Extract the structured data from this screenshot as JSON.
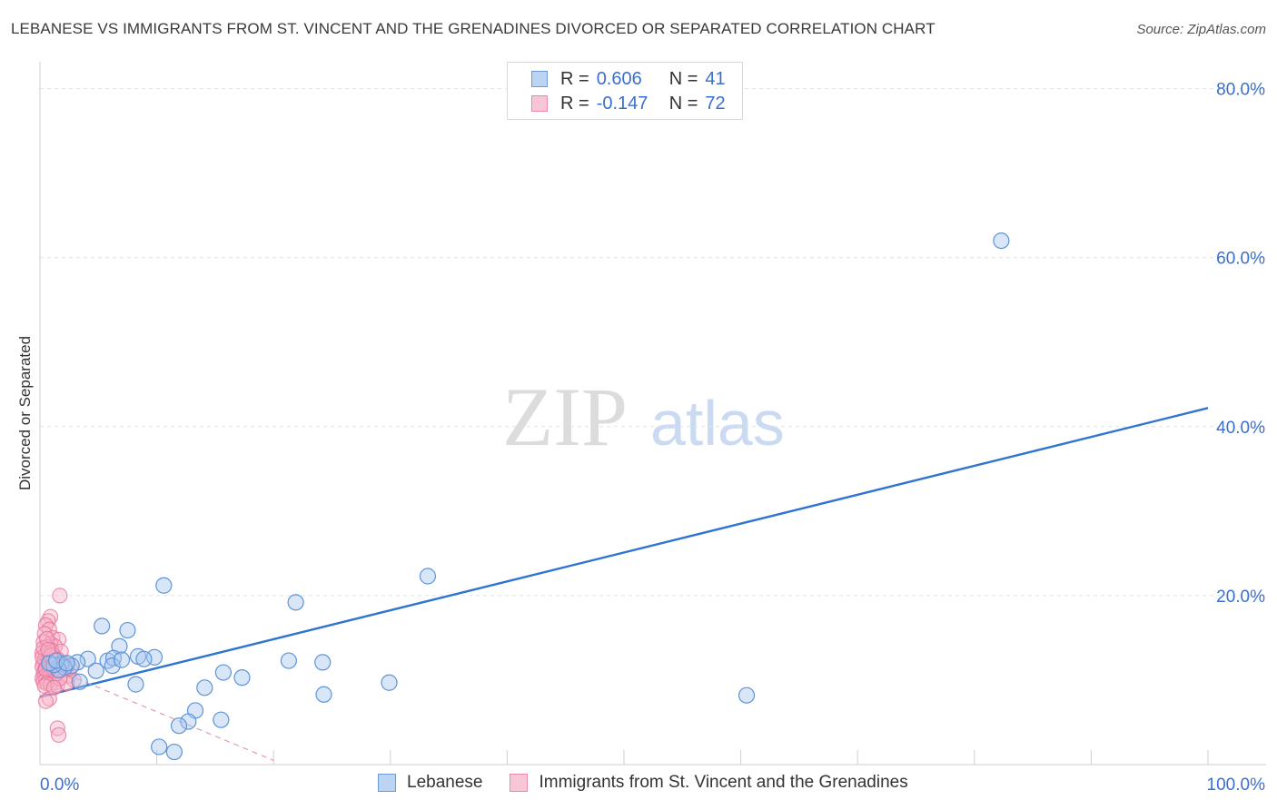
{
  "title": "LEBANESE VS IMMIGRANTS FROM ST. VINCENT AND THE GRENADINES DIVORCED OR SEPARATED CORRELATION CHART",
  "source": "Source: ZipAtlas.com",
  "watermark": {
    "zip": "ZIP",
    "atlas": "atlas"
  },
  "legend": {
    "rows": [
      {
        "r_label": "R = ",
        "r_value": "0.606",
        "n_label": "N = ",
        "n_value": "41"
      },
      {
        "r_label": "R = ",
        "r_value": "-0.147",
        "n_label": "N = ",
        "n_value": "72"
      }
    ]
  },
  "colors": {
    "blue_fill": "#a9c8ef",
    "blue_stroke": "#5f94d8",
    "blue_line": "#2f74d0",
    "pink_fill": "#f7b3c8",
    "pink_stroke": "#ea6f97",
    "pink_line": "#e19ab2",
    "grid": "#e2e2e2",
    "axis_text": "#3a6fd1"
  },
  "chart_data": {
    "type": "scatter",
    "title": "LEBANESE VS IMMIGRANTS FROM ST. VINCENT AND THE GRENADINES DIVORCED OR SEPARATED CORRELATION CHART",
    "xlabel": "",
    "ylabel": "Divorced or Separated",
    "xlim": [
      0,
      100
    ],
    "ylim": [
      0,
      82
    ],
    "x_tick_labels": [
      "0.0%",
      "100.0%"
    ],
    "y_ticks": [
      20,
      40,
      60,
      80
    ],
    "y_tick_labels": [
      "20.0%",
      "40.0%",
      "60.0%",
      "80.0%"
    ],
    "legend_position": "top-center",
    "series": [
      {
        "name": "Lebanese",
        "color": "#5f94d8",
        "R": 0.606,
        "N": 41,
        "trend": {
          "x": [
            0,
            100
          ],
          "y": [
            8.0,
            42.2
          ]
        },
        "points": [
          [
            82.3,
            62.0
          ],
          [
            33.2,
            22.3
          ],
          [
            21.9,
            19.2
          ],
          [
            10.6,
            21.2
          ],
          [
            5.3,
            16.4
          ],
          [
            7.5,
            15.9
          ],
          [
            6.8,
            14.0
          ],
          [
            4.1,
            12.5
          ],
          [
            5.8,
            12.3
          ],
          [
            6.3,
            12.6
          ],
          [
            8.4,
            12.8
          ],
          [
            9.8,
            12.7
          ],
          [
            8.9,
            12.5
          ],
          [
            3.2,
            12.1
          ],
          [
            2.7,
            11.7
          ],
          [
            1.8,
            11.9
          ],
          [
            2.1,
            11.5
          ],
          [
            1.6,
            11.2
          ],
          [
            1.2,
            11.8
          ],
          [
            4.8,
            11.1
          ],
          [
            6.2,
            11.7
          ],
          [
            7.0,
            12.4
          ],
          [
            3.4,
            9.8
          ],
          [
            8.2,
            9.5
          ],
          [
            21.3,
            12.3
          ],
          [
            24.2,
            12.1
          ],
          [
            15.7,
            10.9
          ],
          [
            17.3,
            10.3
          ],
          [
            14.1,
            9.1
          ],
          [
            24.3,
            8.3
          ],
          [
            29.9,
            9.7
          ],
          [
            60.5,
            8.2
          ],
          [
            13.3,
            6.4
          ],
          [
            12.7,
            5.1
          ],
          [
            11.9,
            4.6
          ],
          [
            15.5,
            5.3
          ],
          [
            10.2,
            2.1
          ],
          [
            11.5,
            1.5
          ],
          [
            0.8,
            12.0
          ],
          [
            1.4,
            12.3
          ],
          [
            2.3,
            12.0
          ]
        ]
      },
      {
        "name": "Immigrants from St. Vincent and the Grenadines",
        "color": "#ea6f97",
        "R": -0.147,
        "N": 72,
        "trend": {
          "x": [
            0,
            20
          ],
          "y": [
            12.0,
            0.5
          ]
        },
        "points": [
          [
            1.7,
            20.0
          ],
          [
            0.9,
            17.5
          ],
          [
            0.7,
            17.0
          ],
          [
            0.5,
            16.5
          ],
          [
            0.8,
            16.0
          ],
          [
            0.4,
            15.5
          ],
          [
            1.1,
            15.0
          ],
          [
            1.6,
            14.8
          ],
          [
            0.9,
            14.3
          ],
          [
            1.3,
            14.0
          ],
          [
            0.3,
            14.5
          ],
          [
            0.6,
            13.9
          ],
          [
            1.0,
            13.5
          ],
          [
            1.8,
            13.4
          ],
          [
            0.2,
            13.2
          ],
          [
            0.5,
            13.0
          ],
          [
            0.8,
            12.8
          ],
          [
            1.2,
            12.6
          ],
          [
            0.4,
            12.5
          ],
          [
            0.7,
            12.3
          ],
          [
            1.0,
            12.2
          ],
          [
            1.4,
            12.1
          ],
          [
            0.3,
            12.0
          ],
          [
            0.6,
            11.9
          ],
          [
            0.9,
            11.8
          ],
          [
            1.3,
            11.7
          ],
          [
            0.2,
            11.6
          ],
          [
            0.5,
            11.5
          ],
          [
            0.8,
            11.4
          ],
          [
            1.1,
            11.3
          ],
          [
            1.6,
            11.2
          ],
          [
            0.4,
            11.1
          ],
          [
            0.7,
            11.0
          ],
          [
            1.0,
            10.9
          ],
          [
            0.3,
            10.8
          ],
          [
            0.6,
            10.7
          ],
          [
            0.9,
            10.6
          ],
          [
            1.2,
            10.5
          ],
          [
            0.4,
            10.4
          ],
          [
            0.8,
            10.3
          ],
          [
            0.2,
            10.2
          ],
          [
            0.5,
            10.1
          ],
          [
            1.0,
            10.0
          ],
          [
            0.7,
            9.9
          ],
          [
            0.3,
            9.8
          ],
          [
            1.3,
            9.7
          ],
          [
            0.6,
            9.6
          ],
          [
            0.9,
            9.5
          ],
          [
            1.5,
            9.4
          ],
          [
            0.4,
            9.3
          ],
          [
            2.5,
            10.5
          ],
          [
            2.9,
            10.0
          ],
          [
            2.2,
            11.2
          ],
          [
            2.0,
            12.0
          ],
          [
            1.9,
            11.5
          ],
          [
            1.5,
            12.5
          ],
          [
            0.8,
            7.8
          ],
          [
            0.5,
            7.5
          ],
          [
            1.5,
            4.3
          ],
          [
            1.6,
            3.5
          ],
          [
            2.3,
            9.6
          ],
          [
            0.2,
            12.7
          ],
          [
            0.3,
            13.8
          ],
          [
            0.6,
            14.9
          ],
          [
            1.1,
            13.0
          ],
          [
            1.4,
            10.8
          ],
          [
            0.9,
            12.9
          ],
          [
            0.5,
            11.3
          ],
          [
            1.7,
            10.2
          ],
          [
            1.2,
            9.1
          ],
          [
            0.7,
            13.6
          ],
          [
            2.6,
            11.4
          ]
        ]
      }
    ]
  }
}
